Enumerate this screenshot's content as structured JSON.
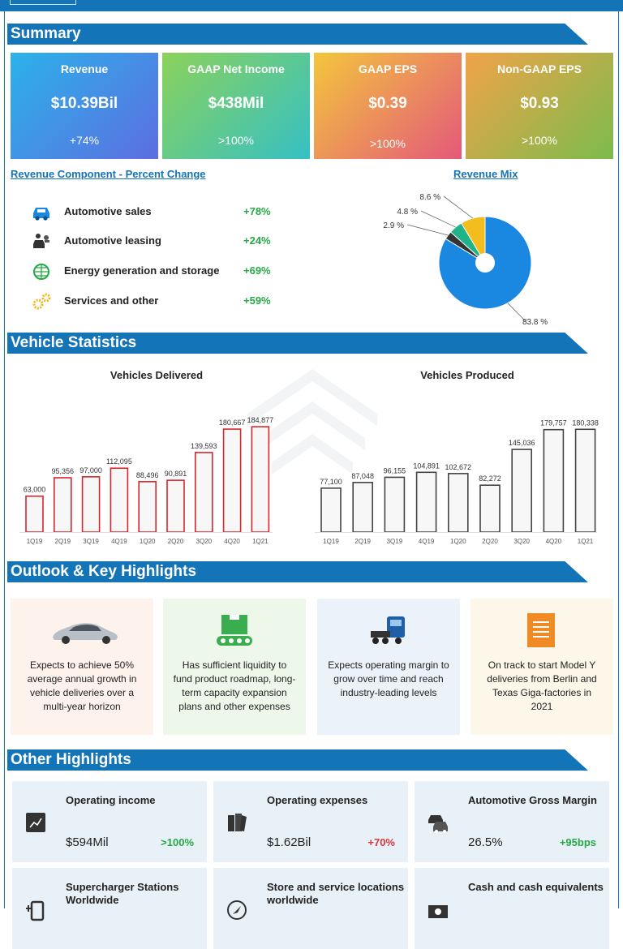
{
  "sections": {
    "summary": "Summary",
    "vehicle": "Vehicle Statistics",
    "outlook": "Outlook & Key Highlights",
    "other": "Other Highlights"
  },
  "summary_tiles": [
    {
      "label": "Revenue",
      "value": "$10.39Bil",
      "change": "+74%"
    },
    {
      "label": "GAAP Net Income",
      "value": "$438Mil",
      "change": ">100%"
    },
    {
      "label": "GAAP EPS",
      "value": "$0.39",
      "change": ">100%"
    },
    {
      "label": "Non-GAAP EPS",
      "value": "$0.93",
      "change": ">100%"
    }
  ],
  "colors": {
    "header_blue": "#1474b8",
    "positive_green": "#27a844",
    "negative_red": "#d9363e",
    "bar_red": "#d9262e",
    "bar_gray": "#444444"
  },
  "revenue_component": {
    "title": "Revenue Component - Percent Change",
    "rows": [
      {
        "icon": "car-icon",
        "name": "Automotive sales",
        "pct": "+78%"
      },
      {
        "icon": "person-car-icon",
        "name": "Automotive leasing",
        "pct": "+24%"
      },
      {
        "icon": "globe-icon",
        "name": "Energy generation and storage",
        "pct": "+69%"
      },
      {
        "icon": "gears-icon",
        "name": "Services and other",
        "pct": "+59%"
      }
    ]
  },
  "chart_data": [
    {
      "type": "pie",
      "title": "Revenue Mix",
      "labels": [
        "83.8 %",
        "2.9 %",
        "4.8 %",
        "8.6 %"
      ],
      "values": [
        83.8,
        2.9,
        4.8,
        8.6
      ],
      "colors": [
        "#1a87e0",
        "#333333",
        "#20b387",
        "#f2bd1d"
      ]
    },
    {
      "type": "bar",
      "title": "Vehicles Delivered",
      "categories": [
        "1Q19",
        "2Q19",
        "3Q19",
        "4Q19",
        "1Q20",
        "2Q20",
        "3Q20",
        "4Q20",
        "1Q21"
      ],
      "values": [
        63000,
        95356,
        97000,
        112095,
        88496,
        90891,
        139593,
        180667,
        184877
      ],
      "labels": [
        "63,000",
        "95,356",
        "97,000",
        "112,095",
        "88,496",
        "90,891",
        "139,593",
        "180,667",
        "184,877"
      ],
      "color": "#d9262e"
    },
    {
      "type": "bar",
      "title": "Vehicles Produced",
      "categories": [
        "1Q19",
        "2Q19",
        "3Q19",
        "4Q19",
        "1Q20",
        "2Q20",
        "3Q20",
        "4Q20",
        "1Q21"
      ],
      "values": [
        77100,
        87048,
        96155,
        104891,
        102672,
        82272,
        145036,
        179757,
        180338
      ],
      "labels": [
        "77,100",
        "87,048",
        "96,155",
        "104,891",
        "102,672",
        "82,272",
        "145,036",
        "179,757",
        "180,338"
      ],
      "color": "#444444"
    }
  ],
  "outlook_cards": [
    {
      "icon": "car-icon",
      "text": "Expects to achieve 50% average annual growth in vehicle deliveries over a multi-year horizon",
      "bg": "#fdf3ec"
    },
    {
      "icon": "conveyor-icon",
      "text": "Has sufficient liquidity to fund product roadmap, long-term capacity expansion plans and other expenses",
      "bg": "#eef8ea"
    },
    {
      "icon": "truck-icon",
      "text": "Expects operating margin to grow over time and reach industry-leading levels",
      "bg": "#ecf2fa"
    },
    {
      "icon": "document-icon",
      "text": "On track to start Model Y deliveries from Berlin and Texas Giga-factories in 2021",
      "bg": "#fdf7ea"
    }
  ],
  "other_highlights": [
    {
      "icon": "chart-icon",
      "label": "Operating income",
      "value": "$594Mil",
      "change": ">100%",
      "change_color": "#27a844"
    },
    {
      "icon": "books-icon",
      "label": "Operating expenses",
      "value": "$1.62Bil",
      "change": "+70%",
      "change_color": "#d9363e"
    },
    {
      "icon": "cars-icon",
      "label": "Automotive Gross Margin",
      "value": "26.5%",
      "change": "+95bps",
      "change_color": "#27a844"
    },
    {
      "icon": "charger-icon",
      "label": "Supercharger Stations Worldwide",
      "value": "",
      "change": ""
    },
    {
      "icon": "compass-icon",
      "label": "Store and service locations worldwide",
      "value": "",
      "change": ""
    },
    {
      "icon": "cash-icon",
      "label": "Cash and cash equivalents",
      "value": "",
      "change": ""
    }
  ]
}
